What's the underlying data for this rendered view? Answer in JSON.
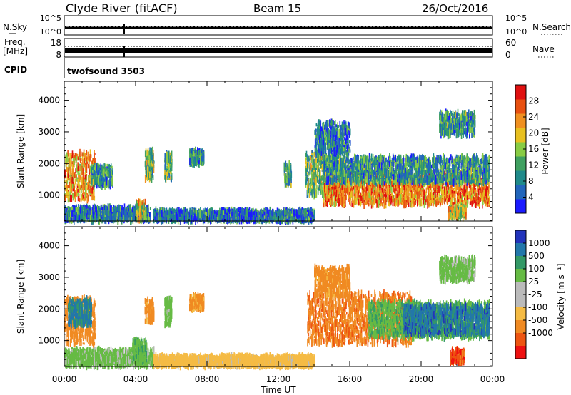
{
  "header": {
    "title": "Clyde River (fitACF)",
    "beam": "Beam 15",
    "date": "26/Oct/2016"
  },
  "top_panels": {
    "nsky": {
      "left_label": "N.Sky",
      "right_label": "N.Search",
      "left_ticks": [
        "10^5",
        "10^0"
      ],
      "right_ticks": [
        "10^5",
        "10^0"
      ]
    },
    "freq": {
      "left_label_1": "Freq.",
      "left_label_2": "[MHz]",
      "right_label": "Nave",
      "left_ticks": [
        "18",
        "8"
      ],
      "right_ticks": [
        "60",
        "0"
      ]
    },
    "cpid": {
      "label": "CPID",
      "value": "twofsound 3503"
    }
  },
  "x_axis": {
    "label": "Time UT",
    "ticks": [
      "00:00",
      "04:00",
      "08:00",
      "12:00",
      "16:00",
      "20:00",
      "00:00"
    ]
  },
  "colors": {
    "power_scale": [
      "#1b1bff",
      "#2266bb",
      "#1f8a8a",
      "#3fa060",
      "#88cc44",
      "#e8c020",
      "#f09020",
      "#e85010",
      "#e01010"
    ],
    "velocity_scale": [
      "#ee1111",
      "#ee5511",
      "#f08a22",
      "#f5bb44",
      "#bbbbbb",
      "#bbbbbb",
      "#66bb44",
      "#339966",
      "#2277aa",
      "#2233bb"
    ]
  },
  "chart_data": [
    {
      "type": "heatmap",
      "name": "power",
      "xlabel": "Time UT",
      "ylabel": "Slant Range [km]",
      "xlim": [
        0,
        24
      ],
      "ylim": [
        180,
        4600
      ],
      "y_ticks": [
        "1000",
        "2000",
        "3000",
        "4000"
      ],
      "colorbar": {
        "label": "Power [dB]",
        "ticks": [
          "4",
          "8",
          "12",
          "16",
          "20",
          "24",
          "28"
        ],
        "range": [
          0,
          32
        ]
      },
      "echo_regions": [
        {
          "t0": 0.0,
          "t1": 1.7,
          "r0": 850,
          "r1": 2350,
          "value": 22
        },
        {
          "t0": 0.0,
          "t1": 4.8,
          "r0": 200,
          "r1": 600,
          "value": 8
        },
        {
          "t0": 1.5,
          "t1": 2.7,
          "r0": 1300,
          "r1": 1900,
          "value": 10
        },
        {
          "t0": 4.0,
          "t1": 4.5,
          "r0": 200,
          "r1": 800,
          "value": 18
        },
        {
          "t0": 4.5,
          "t1": 5.0,
          "r0": 1500,
          "r1": 2400,
          "value": 14
        },
        {
          "t0": 5.6,
          "t1": 6.0,
          "r0": 1500,
          "r1": 2300,
          "value": 14
        },
        {
          "t0": 7.0,
          "t1": 7.8,
          "r0": 2000,
          "r1": 2400,
          "value": 10
        },
        {
          "t0": 5.0,
          "t1": 14.0,
          "r0": 200,
          "r1": 500,
          "value": 8
        },
        {
          "t0": 12.3,
          "t1": 12.7,
          "r0": 1300,
          "r1": 2000,
          "value": 12
        },
        {
          "t0": 13.5,
          "t1": 15.5,
          "r0": 1000,
          "r1": 2300,
          "value": 14
        },
        {
          "t0": 14.5,
          "t1": 23.8,
          "r0": 700,
          "r1": 1700,
          "value": 24
        },
        {
          "t0": 14.5,
          "t1": 23.8,
          "r0": 1400,
          "r1": 2200,
          "value": 10
        },
        {
          "t0": 14.0,
          "t1": 16.0,
          "r0": 2300,
          "r1": 3300,
          "value": 8
        },
        {
          "t0": 21.0,
          "t1": 23.0,
          "r0": 2900,
          "r1": 3600,
          "value": 10
        },
        {
          "t0": 21.5,
          "t1": 22.5,
          "r0": 300,
          "r1": 600,
          "value": 18
        }
      ]
    },
    {
      "type": "heatmap",
      "name": "velocity",
      "xlabel": "Time UT",
      "ylabel": "Slant Range [km]",
      "xlim": [
        0,
        24
      ],
      "ylim": [
        180,
        4600
      ],
      "y_ticks": [
        "1000",
        "2000",
        "3000",
        "4000"
      ],
      "colorbar": {
        "label": "Velocity [m s⁻¹]",
        "ticks": [
          "1000",
          "500",
          "100",
          "25",
          "-25",
          "-100",
          "-500",
          "-1000"
        ]
      },
      "echo_regions": [
        {
          "t0": 0.0,
          "t1": 1.7,
          "r0": 900,
          "r1": 2350,
          "value": -300
        },
        {
          "t0": 0.2,
          "t1": 1.5,
          "r0": 1500,
          "r1": 2300,
          "value": 600
        },
        {
          "t0": 0.0,
          "t1": 5.0,
          "r0": 200,
          "r1": 700,
          "value": 50
        },
        {
          "t0": 3.8,
          "t1": 4.6,
          "r0": 300,
          "r1": 1000,
          "value": 80
        },
        {
          "t0": 4.5,
          "t1": 5.0,
          "r0": 1600,
          "r1": 2300,
          "value": -200
        },
        {
          "t0": 5.6,
          "t1": 6.0,
          "r0": 1500,
          "r1": 2300,
          "value": 60
        },
        {
          "t0": 7.0,
          "t1": 7.8,
          "r0": 2000,
          "r1": 2400,
          "value": -150
        },
        {
          "t0": 5.0,
          "t1": 14.0,
          "r0": 200,
          "r1": 500,
          "value": -60
        },
        {
          "t0": 13.6,
          "t1": 19.5,
          "r0": 900,
          "r1": 2500,
          "value": -400
        },
        {
          "t0": 17.0,
          "t1": 23.8,
          "r0": 1100,
          "r1": 2200,
          "value": 80
        },
        {
          "t0": 19.0,
          "t1": 23.8,
          "r0": 1200,
          "r1": 2100,
          "value": 700
        },
        {
          "t0": 14.0,
          "t1": 16.0,
          "r0": 2400,
          "r1": 3300,
          "value": -200
        },
        {
          "t0": 21.0,
          "t1": 23.0,
          "r0": 2900,
          "r1": 3600,
          "value": 50
        },
        {
          "t0": 21.6,
          "t1": 22.4,
          "r0": 300,
          "r1": 700,
          "value": -900
        }
      ]
    }
  ]
}
